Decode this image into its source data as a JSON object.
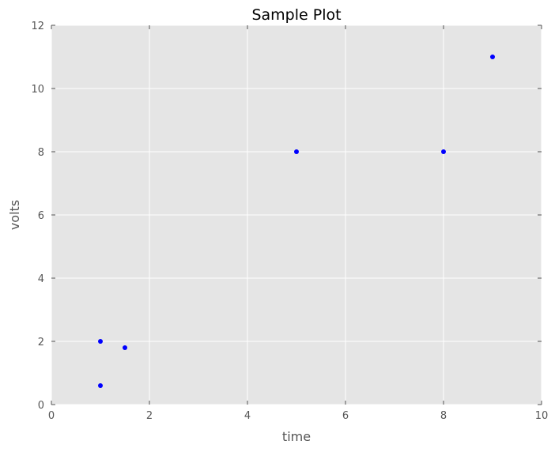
{
  "chart_data": {
    "type": "scatter",
    "title": "Sample Plot",
    "xlabel": "time",
    "ylabel": "volts",
    "xlim": [
      0,
      10
    ],
    "ylim": [
      0,
      12
    ],
    "xticks": [
      0,
      2,
      4,
      6,
      8,
      10
    ],
    "yticks": [
      0,
      2,
      4,
      6,
      8,
      10,
      12
    ],
    "grid": true,
    "background_color": "#e5e5e5",
    "grid_color": "#ffffff",
    "point_color": "#0000ff",
    "series": [
      {
        "x": [
          1,
          1,
          1.5,
          5,
          8,
          9
        ],
        "y": [
          2,
          0.6,
          1.8,
          8,
          8,
          11
        ]
      }
    ]
  }
}
